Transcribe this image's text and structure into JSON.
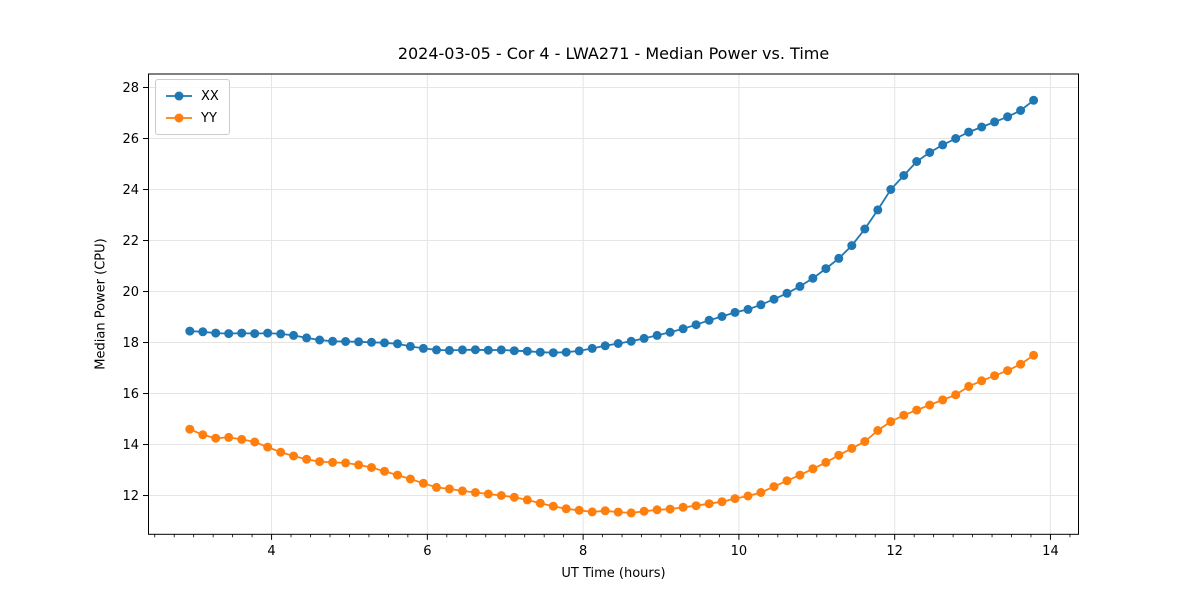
{
  "chart_data": {
    "type": "line",
    "title": "2024-03-05 - Cor 4 - LWA271 - Median Power vs. Time",
    "xlabel": "UT Time (hours)",
    "ylabel": "Median Power (CPU)",
    "xlim": [
      2.42,
      14.36
    ],
    "ylim": [
      10.48,
      28.53
    ],
    "x_ticks": [
      4,
      6,
      8,
      10,
      12,
      14
    ],
    "y_ticks": [
      12,
      14,
      16,
      18,
      20,
      22,
      24,
      26,
      28
    ],
    "x_minor_tick_step": 0.25,
    "grid": true,
    "grid_color": "#e5e5e5",
    "spine_color": "#000000",
    "legend_position": "upper left",
    "x": [
      2.95,
      3.117,
      3.283,
      3.45,
      3.617,
      3.783,
      3.95,
      4.117,
      4.283,
      4.45,
      4.617,
      4.783,
      4.95,
      5.117,
      5.283,
      5.45,
      5.617,
      5.783,
      5.95,
      6.117,
      6.283,
      6.45,
      6.617,
      6.783,
      6.95,
      7.117,
      7.283,
      7.45,
      7.617,
      7.783,
      7.95,
      8.117,
      8.283,
      8.45,
      8.617,
      8.783,
      8.95,
      9.117,
      9.283,
      9.45,
      9.617,
      9.783,
      9.95,
      10.117,
      10.283,
      10.45,
      10.617,
      10.783,
      10.95,
      11.117,
      11.283,
      11.45,
      11.617,
      11.783,
      11.95,
      12.117,
      12.283,
      12.45,
      12.617,
      12.783,
      12.95,
      13.117,
      13.283,
      13.45,
      13.617,
      13.783
    ],
    "series": [
      {
        "name": "XX",
        "color": "#1f77b4",
        "values": [
          18.45,
          18.42,
          18.37,
          18.35,
          18.37,
          18.35,
          18.37,
          18.34,
          18.28,
          18.18,
          18.1,
          18.05,
          18.04,
          18.03,
          18.01,
          17.99,
          17.95,
          17.85,
          17.77,
          17.71,
          17.69,
          17.71,
          17.72,
          17.7,
          17.71,
          17.68,
          17.66,
          17.62,
          17.6,
          17.62,
          17.67,
          17.77,
          17.87,
          17.96,
          18.05,
          18.16,
          18.28,
          18.4,
          18.54,
          18.7,
          18.87,
          19.02,
          19.18,
          19.3,
          19.48,
          19.7,
          19.93,
          20.2,
          20.52,
          20.9,
          21.3,
          21.8,
          22.45,
          23.2,
          24.0,
          24.55,
          25.1,
          25.45,
          25.75,
          26.0,
          26.25,
          26.45,
          26.65,
          26.85,
          27.1,
          27.5
        ]
      },
      {
        "name": "YY",
        "color": "#ff7f0e",
        "values": [
          14.6,
          14.38,
          14.25,
          14.28,
          14.2,
          14.1,
          13.9,
          13.7,
          13.55,
          13.42,
          13.33,
          13.3,
          13.28,
          13.2,
          13.1,
          12.95,
          12.8,
          12.65,
          12.48,
          12.32,
          12.26,
          12.18,
          12.12,
          12.06,
          12.0,
          11.93,
          11.83,
          11.7,
          11.58,
          11.48,
          11.42,
          11.36,
          11.4,
          11.35,
          11.32,
          11.38,
          11.44,
          11.47,
          11.54,
          11.6,
          11.68,
          11.76,
          11.88,
          11.98,
          12.12,
          12.35,
          12.58,
          12.8,
          13.05,
          13.3,
          13.58,
          13.85,
          14.12,
          14.55,
          14.9,
          15.15,
          15.35,
          15.55,
          15.75,
          15.95,
          16.28,
          16.5,
          16.7,
          16.9,
          17.15,
          17.5
        ]
      }
    ]
  },
  "style": {
    "marker_radius": 4.5,
    "line_width": 1.8
  }
}
